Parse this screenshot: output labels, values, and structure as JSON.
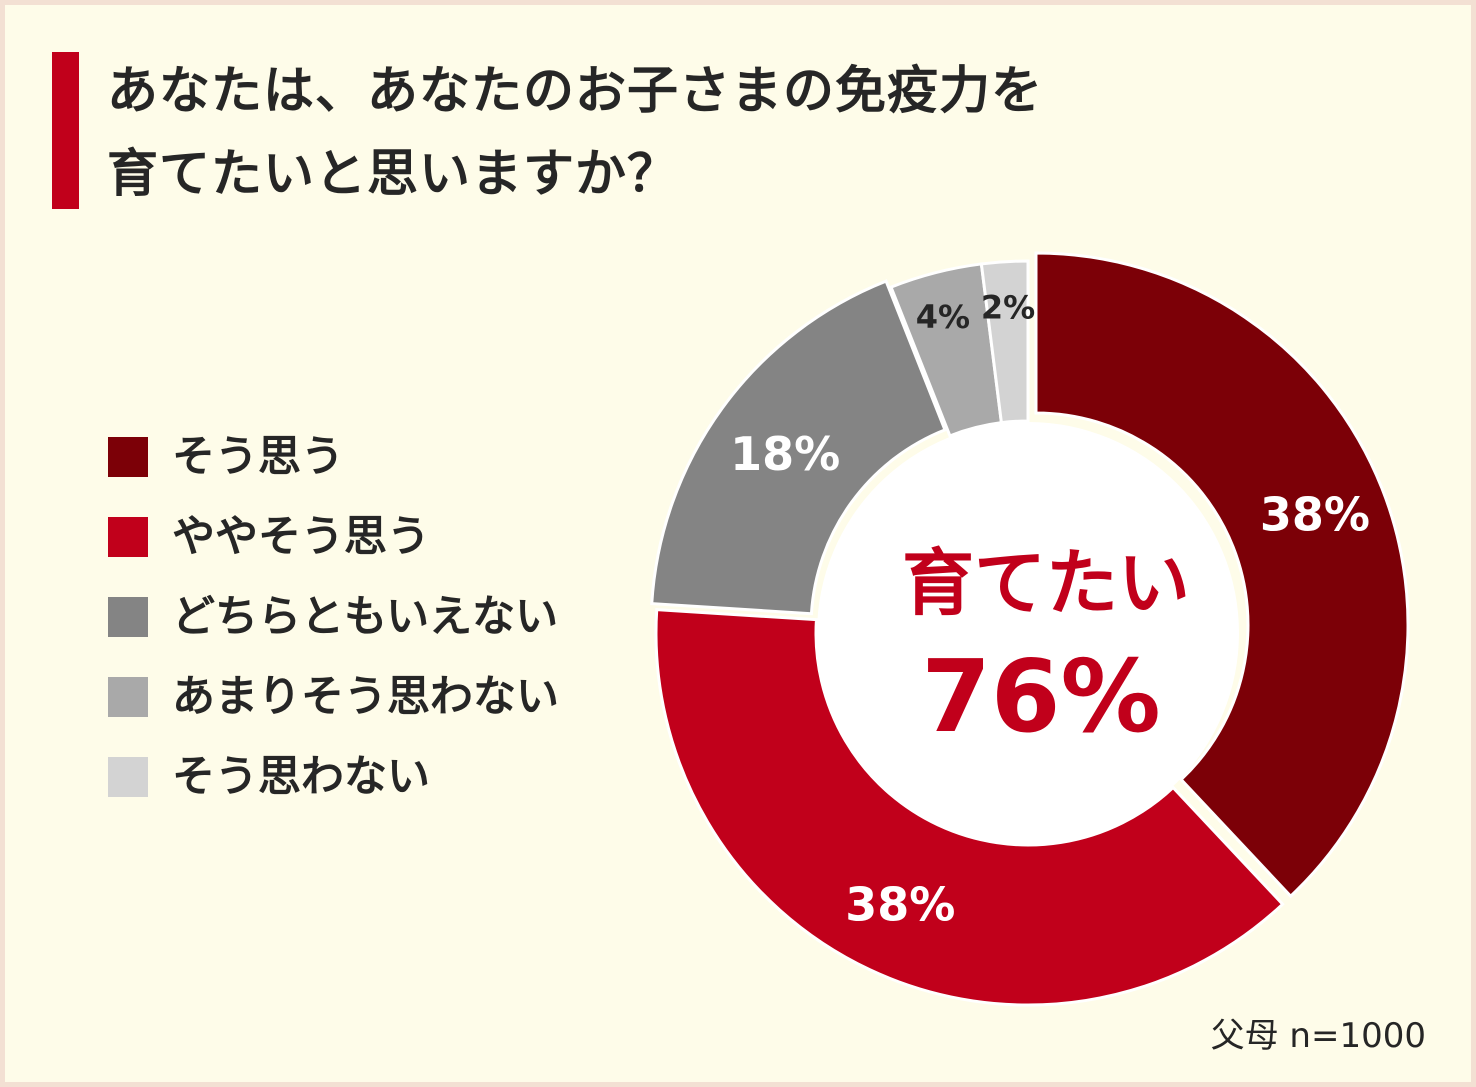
{
  "chart_data": {
    "type": "pie",
    "variant": "donut",
    "title": "あなたは、あなたのお子さまの免疫力を\n育てたいと思いますか？",
    "title_lines": [
      "あなたは、あなたのお子さまの免疫力を",
      "育てたいと思いますか？"
    ],
    "categories": [
      "そう思う",
      "ややそう思う",
      "どちらともいえない",
      "あまりそう思わない",
      "そう思わない"
    ],
    "values": [
      38,
      38,
      18,
      4,
      2
    ],
    "value_labels": [
      "38%",
      "38%",
      "18%",
      "4%",
      "2%"
    ],
    "colors": [
      "#7c0007",
      "#c1001b",
      "#848484",
      "#a9a9a9",
      "#d3d3d3"
    ],
    "label_colors": [
      "#ffffff",
      "#ffffff",
      "#ffffff",
      "#262626",
      "#262626"
    ],
    "legend_position": "left",
    "center_label": "育てたい",
    "center_value": "76%",
    "center_color": "#c1001b",
    "accent_color": "#c1001b",
    "sample_note": "父母 n=1000"
  }
}
